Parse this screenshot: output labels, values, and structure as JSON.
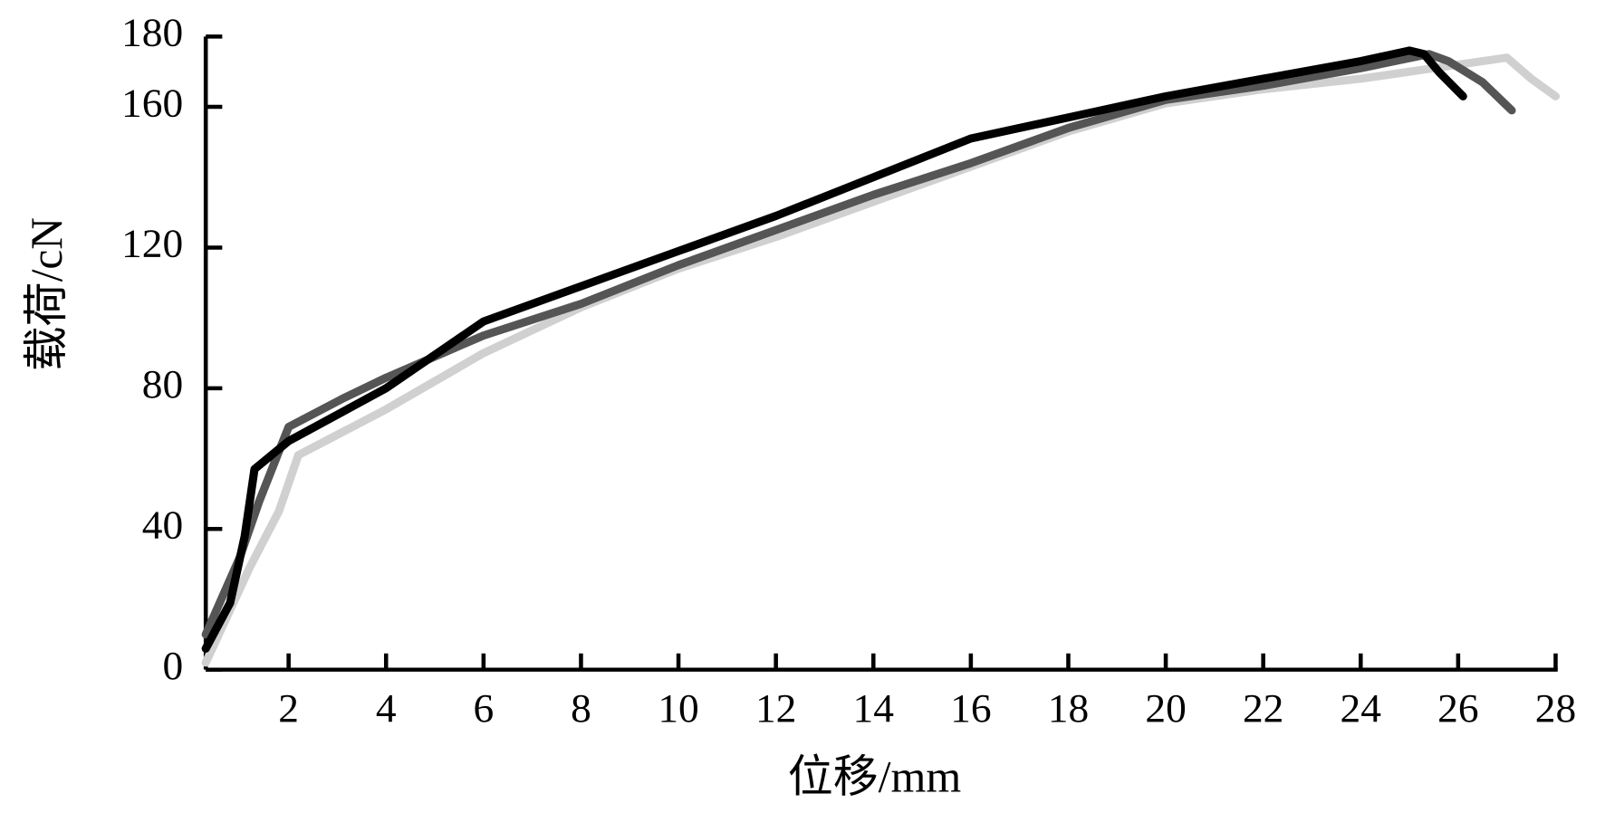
{
  "chart_data": {
    "type": "line",
    "xlabel": "位移/mm",
    "ylabel": "载荷/cN",
    "xlim": [
      0.3,
      28
    ],
    "xticks": [
      2,
      4,
      6,
      8,
      10,
      12,
      14,
      16,
      18,
      20,
      22,
      24,
      26,
      28
    ],
    "ylim": [
      0,
      180
    ],
    "yticks": [
      0,
      40,
      80,
      120,
      160,
      180
    ],
    "series": [
      {
        "color": "#000000",
        "x": [
          0.3,
          0.8,
          1.1,
          1.3,
          2,
          4,
          6,
          8,
          10,
          12,
          14,
          16,
          18,
          20,
          22,
          24,
          25,
          25.3,
          25.6,
          26.1
        ],
        "values": [
          6,
          19,
          38,
          57,
          65,
          80,
          99,
          109,
          119,
          129,
          140,
          151,
          157,
          163,
          168,
          173,
          176,
          175,
          170,
          163
        ]
      },
      {
        "color": "#555555",
        "x": [
          0.3,
          1,
          1.4,
          2,
          3.1,
          4,
          6,
          8,
          10,
          12,
          14,
          16,
          18,
          20,
          22,
          24,
          25.4,
          25.8,
          26.5,
          27.1
        ],
        "values": [
          10,
          32,
          48,
          69,
          77,
          83,
          95,
          104,
          115,
          125,
          135,
          144,
          154,
          162,
          166,
          171,
          175,
          173,
          167,
          159
        ]
      },
      {
        "color": "#d0d0d0",
        "x": [
          0.3,
          1.2,
          1.8,
          2.2,
          4,
          6,
          8,
          10,
          12,
          14,
          16,
          18,
          20,
          22,
          24,
          26,
          27,
          27.5,
          28
        ],
        "values": [
          2,
          29,
          45,
          61,
          74,
          90,
          103,
          114,
          123,
          133,
          143,
          153,
          161,
          165,
          168,
          172,
          174,
          168,
          163
        ]
      }
    ]
  }
}
